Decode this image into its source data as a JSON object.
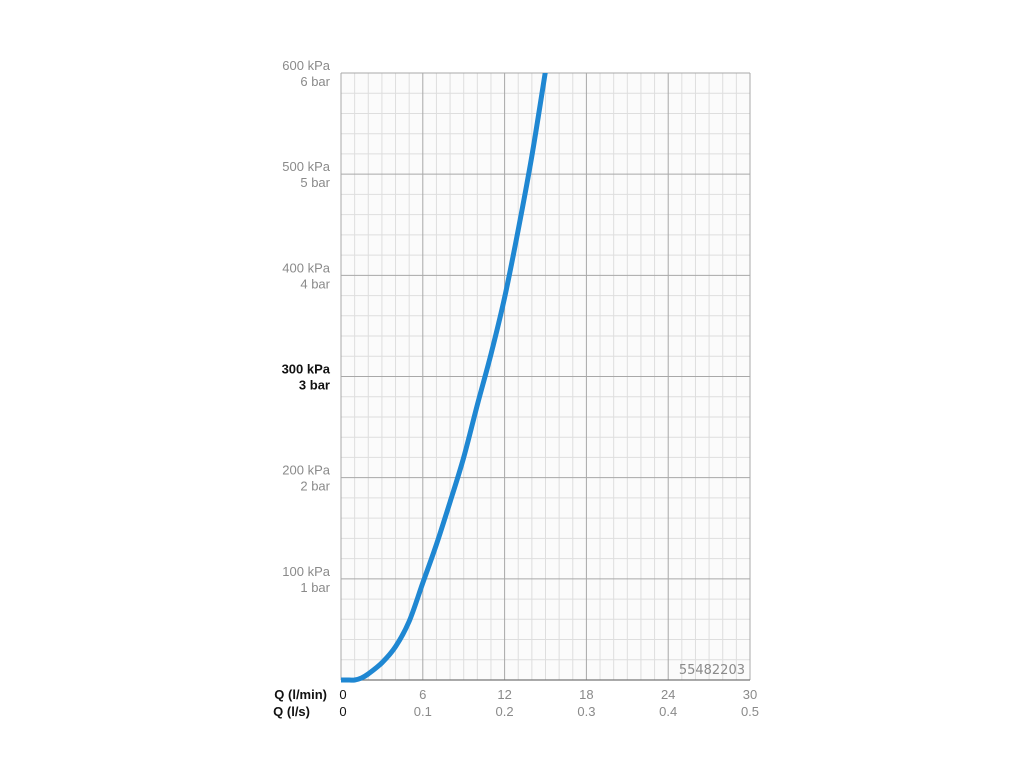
{
  "chart_data": {
    "type": "line",
    "series": [
      {
        "color": "#1f87d2",
        "x": [
          0,
          0.6,
          1,
          1.5,
          2,
          3,
          4,
          5,
          6,
          7,
          8,
          9,
          10,
          11,
          12,
          13,
          14,
          15
        ],
        "y": [
          0,
          0,
          0,
          2,
          6,
          17,
          33,
          58,
          96,
          134,
          176,
          220,
          272,
          322,
          378,
          445,
          518,
          602
        ]
      }
    ],
    "x_axis": {
      "range": [
        0,
        30
      ],
      "primary": {
        "title": "Q (l/min)",
        "ticks": [
          {
            "value": 0,
            "label": "0"
          },
          {
            "value": 6,
            "label": "6"
          },
          {
            "value": 12,
            "label": "12"
          },
          {
            "value": 18,
            "label": "18"
          },
          {
            "value": 24,
            "label": "24"
          },
          {
            "value": 30,
            "label": "30"
          }
        ]
      },
      "secondary": {
        "title": "Q (l/s)",
        "ticks": [
          {
            "value": 0,
            "label": "0"
          },
          {
            "value": 6,
            "label": "0.1"
          },
          {
            "value": 12,
            "label": "0.2"
          },
          {
            "value": 18,
            "label": "0.3"
          },
          {
            "value": 24,
            "label": "0.4"
          },
          {
            "value": 30,
            "label": "0.5"
          }
        ]
      }
    },
    "y_axis": {
      "range": [
        0,
        600
      ],
      "ticks": [
        {
          "value": 100,
          "label_kpa": "100 kPa",
          "label_bar": "1 bar",
          "bold": false
        },
        {
          "value": 200,
          "label_kpa": "200 kPa",
          "label_bar": "2 bar",
          "bold": false
        },
        {
          "value": 300,
          "label_kpa": "300 kPa",
          "label_bar": "3 bar",
          "bold": true
        },
        {
          "value": 400,
          "label_kpa": "400 kPa",
          "label_bar": "4 bar",
          "bold": false
        },
        {
          "value": 500,
          "label_kpa": "500 kPa",
          "label_bar": "5 bar",
          "bold": false
        },
        {
          "value": 600,
          "label_kpa": "600 kPa",
          "label_bar": "6 bar",
          "bold": false
        }
      ]
    },
    "grid": true,
    "product_code": "55482203",
    "colors": {
      "curve": "#1f87d2",
      "major_grid": "#a8a8a8",
      "minor_grid": "#dedede",
      "tick_label": "#8a8a8a",
      "highlight_label": "#111111"
    }
  }
}
